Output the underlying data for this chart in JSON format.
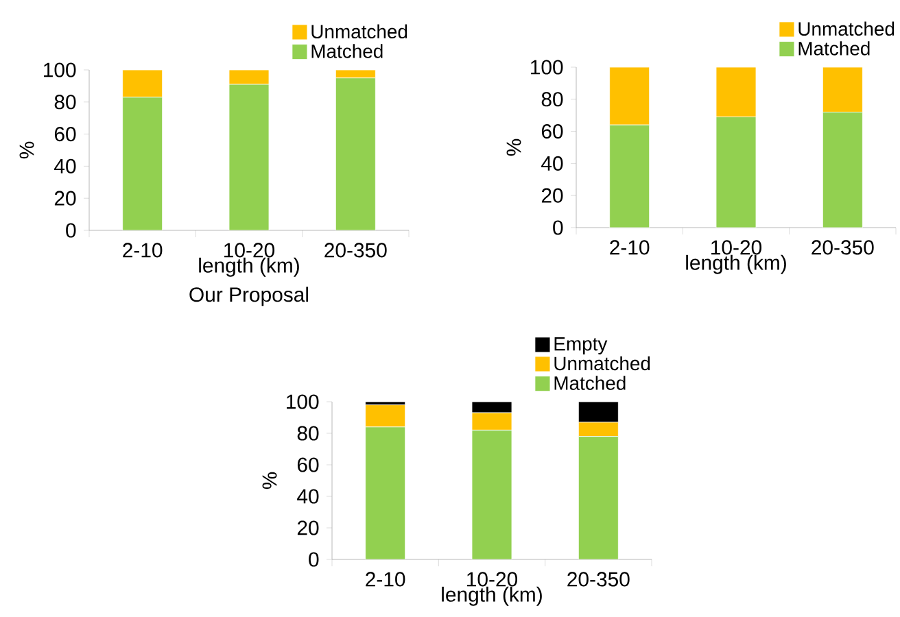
{
  "chart_data": [
    {
      "type": "bar",
      "title": "Our Proposal",
      "xlabel": "length (km)",
      "ylabel": "%",
      "categories": [
        "2-10",
        "10-20",
        "20-350"
      ],
      "stacked": true,
      "ylim": [
        0,
        100
      ],
      "yticks": [
        0,
        20,
        40,
        60,
        80,
        100
      ],
      "legend": "top right",
      "series": [
        {
          "name": "Matched",
          "color": "#92d050",
          "values": [
            83,
            91,
            95
          ]
        },
        {
          "name": "Unmatched",
          "color": "#ffc000",
          "values": [
            17,
            9,
            5
          ]
        }
      ]
    },
    {
      "type": "bar",
      "xlabel": "length (km)",
      "ylabel": "%",
      "categories": [
        "2-10",
        "10-20",
        "20-350"
      ],
      "stacked": true,
      "ylim": [
        0,
        100
      ],
      "yticks": [
        0,
        20,
        40,
        60,
        80,
        100
      ],
      "legend": "top right",
      "series": [
        {
          "name": "Matched",
          "color": "#92d050",
          "values": [
            64,
            69,
            72
          ]
        },
        {
          "name": "Unmatched",
          "color": "#ffc000",
          "values": [
            36,
            31,
            28
          ]
        }
      ]
    },
    {
      "type": "bar",
      "xlabel": "length (km)",
      "ylabel": "%",
      "categories": [
        "2-10",
        "10-20",
        "20-350"
      ],
      "stacked": true,
      "ylim": [
        0,
        100
      ],
      "yticks": [
        0,
        20,
        40,
        60,
        80,
        100
      ],
      "legend": "top right",
      "series": [
        {
          "name": "Matched",
          "color": "#92d050",
          "values": [
            84,
            82,
            78
          ]
        },
        {
          "name": "Unmatched",
          "color": "#ffc000",
          "values": [
            14,
            11,
            9
          ]
        },
        {
          "name": "Empty",
          "color": "#000000",
          "values": [
            2,
            7,
            13
          ]
        }
      ]
    }
  ]
}
